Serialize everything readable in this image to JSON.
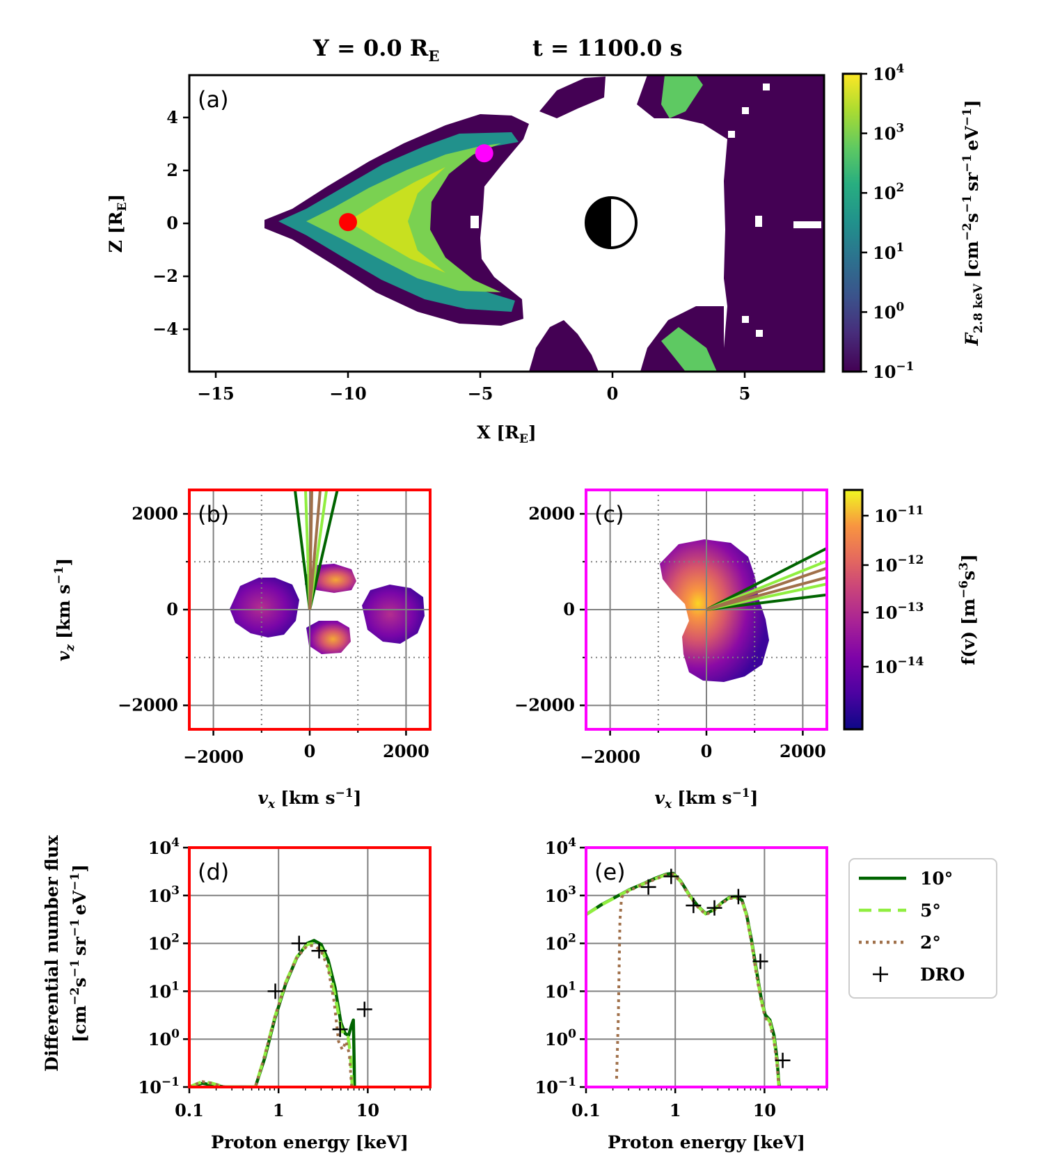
{
  "figure_title": {
    "left": "Y = 0.0 R",
    "left_sub": "E",
    "right": "t = 1100.0 s"
  },
  "panel_labels": {
    "a": "(a)",
    "b": "(b)",
    "c": "(c)",
    "d": "(d)",
    "e": "(e)"
  },
  "chart_data": [
    {
      "id": "a",
      "type": "heatmap",
      "xlabel": "X [R",
      "xlabel_sub": "E",
      "xlabel_close": "]",
      "ylabel": "Z [R",
      "ylabel_sub": "E",
      "ylabel_close": "]",
      "xlim": [
        -16,
        8
      ],
      "ylim": [
        -5.6,
        5.6
      ],
      "xticks": [
        -15,
        -10,
        -5,
        0,
        5
      ],
      "xtick_labels": [
        "−15",
        "−10",
        "−5",
        "0",
        "5"
      ],
      "yticks": [
        4,
        2,
        0,
        -2,
        -4
      ],
      "ytick_labels": [
        "4",
        "2",
        "0",
        "−2",
        "−4"
      ],
      "markers": [
        {
          "name": "red-point",
          "x": -10,
          "z": 0.05,
          "color": "#ff0000"
        },
        {
          "name": "magenta-point",
          "x": -4.85,
          "z": 2.65,
          "color": "#ff00ff"
        }
      ],
      "colorbar": {
        "label": "F",
        "label_sub": "2.8 keV",
        "label_units": "[cm",
        "label_units_rest": "s",
        "label_units_sr": "sr",
        "label_units_ev": "eV",
        "label_close": "]",
        "label_exp": "−2",
        "label_exp2": "−1",
        "tick_labels": [
          "10",
          "10",
          "10",
          "10",
          "10",
          "10"
        ],
        "tick_exps": [
          "4",
          "3",
          "2",
          "1",
          "0",
          "−1"
        ],
        "range_log10": [
          -1,
          4
        ],
        "colormap": "viridis"
      }
    },
    {
      "id": "b",
      "type": "heatmap",
      "xlabel": "v",
      "xlabel_sub": "x",
      "xlabel_units": "[km s",
      "xlabel_exp": "−1",
      "xlabel_close": "]",
      "ylabel": "v",
      "ylabel_sub": "z",
      "ylabel_units": "[km s",
      "ylabel_exp": "−1",
      "ylabel_close": "]",
      "xlim": [
        -2500,
        2500
      ],
      "ylim": [
        -2500,
        2500
      ],
      "xtick_labels": [
        "−2000",
        "0",
        "2000"
      ],
      "ytick_labels": [
        "2000",
        "0",
        "−2000"
      ],
      "frame_color": "#ff0000",
      "cone_angles_deg": [
        10,
        5,
        2
      ],
      "cone_direction_deg": 87
    },
    {
      "id": "c",
      "type": "heatmap",
      "xlabel": "v",
      "xlabel_sub": "x",
      "xlabel_units": "[km s",
      "xlabel_exp": "−1",
      "xlabel_close": "]",
      "xlim": [
        -2500,
        2500
      ],
      "ylim": [
        -2500,
        2500
      ],
      "xtick_labels": [
        "−2000",
        "0",
        "2000"
      ],
      "ytick_labels": [
        "2000",
        "0",
        "−2000"
      ],
      "frame_color": "#ff00ff",
      "cone_angles_deg": [
        10,
        5,
        2
      ],
      "cone_direction_deg": 17,
      "colorbar": {
        "label": "f(v) [m",
        "label_exp": "−6",
        "label_mid": "s",
        "label_exp2": "3",
        "label_close": "]",
        "tick_labels": [
          "10",
          "10",
          "10",
          "10"
        ],
        "tick_exps": [
          "−11",
          "−12",
          "−13",
          "−14"
        ],
        "colormap": "plasma"
      }
    },
    {
      "id": "d",
      "type": "line",
      "xscale": "log",
      "yscale": "log",
      "xlim": [
        0.1,
        50
      ],
      "ylim": [
        0.1,
        10000
      ],
      "xlabel": "Proton energy [keV]",
      "ylabel_line1": "Differential number flux",
      "ylabel_line2": "[cm",
      "ylabel_exp_a": "−2",
      "ylabel_s": "s",
      "ylabel_exp_b": "−1",
      "ylabel_sr": "sr",
      "ylabel_exp_c": "−1",
      "ylabel_ev": "eV",
      "ylabel_exp_d": "−1",
      "ylabel_close": "]",
      "xtick_labels": [
        "0.1",
        "1",
        "10"
      ],
      "ytick_labels": [
        "10",
        "10",
        "10",
        "10",
        "10",
        "10"
      ],
      "ytick_exps": [
        "4",
        "3",
        "2",
        "1",
        "0",
        "−1"
      ],
      "frame_color": "#ff0000",
      "series": [
        {
          "name": "10°",
          "color": "#006400",
          "dash": "",
          "x": [
            0.1,
            0.14,
            0.18,
            0.25,
            0.4,
            0.55,
            0.7,
            0.9,
            1.2,
            1.6,
            2.1,
            2.5,
            3.0,
            3.6,
            4.3,
            5.0,
            5.6,
            6.1,
            6.6,
            6.9,
            7.05,
            7.1
          ],
          "y": [
            0.1,
            0.12,
            0.11,
            0.1,
            0.1,
            0.1,
            0.4,
            2.5,
            14,
            50,
            100,
            115,
            95,
            45,
            12,
            2.2,
            1.3,
            1.2,
            2.0,
            2.5,
            0.3,
            0.1
          ]
        },
        {
          "name": "5°",
          "color": "#90ee40",
          "dash": "18,10",
          "x": [
            0.1,
            0.14,
            0.18,
            0.25,
            0.4,
            0.55,
            0.7,
            0.9,
            1.2,
            1.6,
            2.1,
            2.5,
            3.0,
            3.6,
            4.3,
            5.0,
            5.5,
            6.0,
            6.4,
            6.7
          ],
          "y": [
            0.1,
            0.13,
            0.12,
            0.1,
            0.1,
            0.1,
            0.45,
            2.7,
            15,
            52,
            95,
            100,
            80,
            35,
            8,
            1.8,
            1.1,
            1.1,
            0.5,
            0.1
          ]
        },
        {
          "name": "2°",
          "color": "#a0704a",
          "dash": "4,6",
          "x": [
            0.1,
            0.14,
            0.18,
            0.25,
            0.4,
            0.55,
            0.7,
            0.9,
            1.2,
            1.6,
            2.1,
            2.5,
            3.0,
            3.6,
            4.2,
            4.7,
            5.2,
            5.7,
            6.2,
            6.6
          ],
          "y": [
            0.1,
            0.13,
            0.12,
            0.1,
            0.1,
            0.1,
            0.45,
            2.7,
            15,
            50,
            90,
            90,
            70,
            30,
            6,
            0.9,
            0.6,
            0.9,
            0.5,
            0.1
          ]
        }
      ],
      "dro": {
        "x": [
          0.92,
          1.7,
          2.85,
          4.9,
          9.2
        ],
        "y": [
          10,
          100,
          70,
          1.6,
          4.2
        ]
      }
    },
    {
      "id": "e",
      "type": "line",
      "xscale": "log",
      "yscale": "log",
      "xlim": [
        0.1,
        50
      ],
      "ylim": [
        0.1,
        10000
      ],
      "xlabel": "Proton energy [keV]",
      "xtick_labels": [
        "0.1",
        "1",
        "10"
      ],
      "ytick_labels": [
        "10",
        "10",
        "10",
        "10",
        "10",
        "10"
      ],
      "ytick_exps": [
        "4",
        "3",
        "2",
        "1",
        "0",
        "−1"
      ],
      "frame_color": "#ff00ff",
      "series": [
        {
          "name": "10°",
          "color": "#006400",
          "dash": "",
          "x": [
            0.1,
            0.15,
            0.22,
            0.3,
            0.45,
            0.6,
            0.8,
            0.95,
            1.15,
            1.45,
            1.8,
            2.2,
            2.7,
            3.3,
            4.0,
            4.8,
            5.6,
            6.3,
            7.2,
            8.2,
            9.2,
            10.2,
            11.5,
            12.8,
            13.8,
            14.5,
            14.8
          ],
          "y": [
            400,
            650,
            950,
            1300,
            1800,
            2300,
            2800,
            2900,
            2000,
            1000,
            600,
            420,
            500,
            700,
            900,
            950,
            800,
            400,
            110,
            25,
            7,
            3.2,
            2.5,
            1.2,
            0.4,
            0.12,
            0.1
          ]
        },
        {
          "name": "5°",
          "color": "#90ee40",
          "dash": "18,10",
          "x": [
            0.1,
            0.15,
            0.22,
            0.3,
            0.45,
            0.6,
            0.8,
            0.95,
            1.15,
            1.45,
            1.8,
            2.2,
            2.7,
            3.3,
            4.0,
            4.8,
            5.6,
            6.3,
            7.2,
            8.2,
            9.2,
            10.2,
            11.5,
            12.8,
            13.8,
            14.5
          ],
          "y": [
            400,
            640,
            940,
            1280,
            1780,
            2250,
            2750,
            2850,
            1950,
            980,
            590,
            410,
            490,
            690,
            880,
            930,
            780,
            380,
            100,
            22,
            6.5,
            3.0,
            2.3,
            1.0,
            0.35,
            0.1
          ]
        },
        {
          "name": "2°",
          "color": "#a0704a",
          "dash": "4,6",
          "x": [
            0.22,
            0.23,
            0.24,
            0.25,
            0.26,
            0.3,
            0.45,
            0.6,
            0.8,
            0.95,
            1.15,
            1.45,
            1.8,
            2.2,
            2.7,
            3.3,
            4.0,
            4.8,
            5.6,
            6.3,
            7.2,
            8.2,
            9.2,
            10.2,
            11.5,
            12.8,
            13.8,
            14.5
          ],
          "y": [
            0.15,
            3,
            300,
            900,
            1000,
            1250,
            1750,
            2200,
            2700,
            2800,
            1900,
            950,
            570,
            400,
            480,
            680,
            860,
            900,
            760,
            370,
            95,
            20,
            6,
            2.8,
            2.1,
            0.9,
            0.3,
            0.1
          ]
        }
      ],
      "dro": {
        "x": [
          0.5,
          0.9,
          1.6,
          2.75,
          5.1,
          9.0,
          16.0
        ],
        "y": [
          1500,
          2500,
          620,
          550,
          950,
          42,
          0.36
        ]
      },
      "legend": {
        "position": "right",
        "entries": [
          {
            "label": "10°",
            "color": "#006400",
            "dash": ""
          },
          {
            "label": "5°",
            "color": "#90ee40",
            "dash": "18,10"
          },
          {
            "label": "2°",
            "color": "#a0704a",
            "dash": "4,6"
          },
          {
            "label": "DRO",
            "color": "#000000",
            "marker": "+"
          }
        ]
      }
    }
  ]
}
